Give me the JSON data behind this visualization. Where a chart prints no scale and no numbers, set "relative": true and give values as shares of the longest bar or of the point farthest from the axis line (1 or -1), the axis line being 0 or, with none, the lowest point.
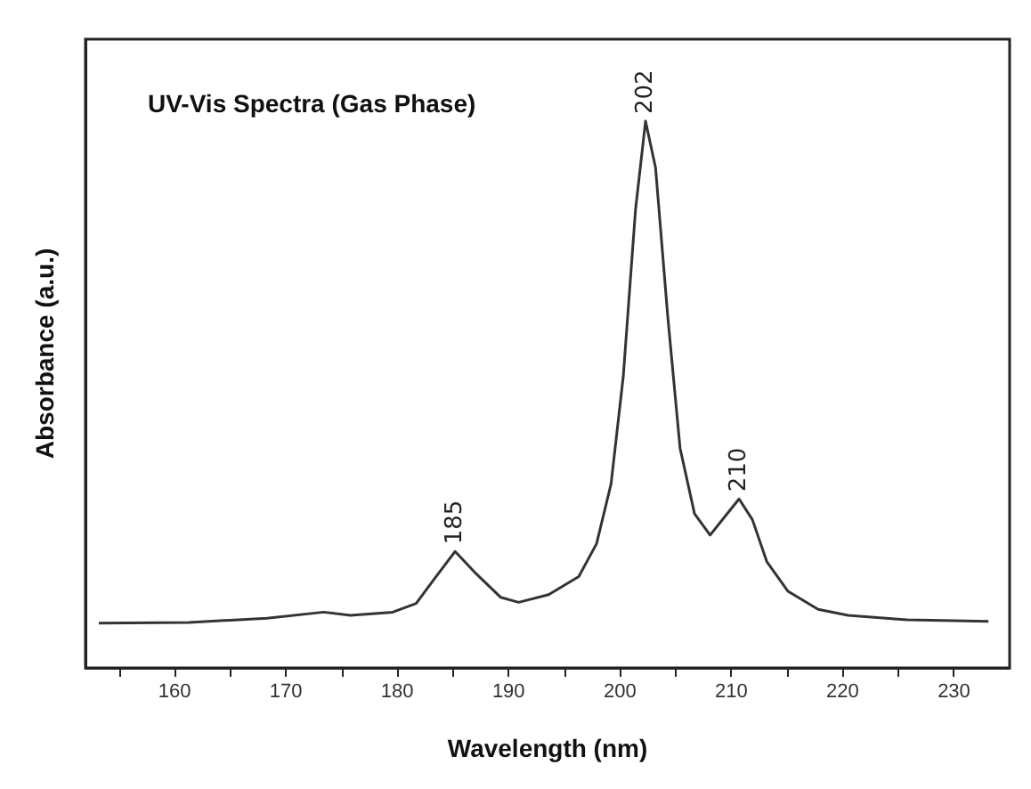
{
  "chart_data": {
    "type": "line",
    "title": "UV-Vis Spectra (Gas Phase)",
    "xlabel": "Wavelength (nm)",
    "ylabel": "Absorbance (a.u.)",
    "relative": true,
    "x": [
      153.2,
      161.3,
      168.3,
      173.4,
      175.8,
      179.6,
      181.7,
      183.3,
      185.2,
      187.1,
      189.3,
      190.9,
      193.6,
      196.3,
      197.9,
      199.2,
      200.3,
      201.4,
      202.3,
      203.2,
      204.3,
      205.4,
      206.7,
      208.1,
      209.4,
      210.7,
      211.9,
      213.2,
      215.1,
      217.8,
      220.5,
      225.8,
      233.1
    ],
    "series": [
      {
        "color": "#333333",
        "values": [
          0.082,
          0.083,
          0.091,
          0.102,
          0.096,
          0.102,
          0.118,
          0.162,
          0.213,
          0.172,
          0.129,
          0.12,
          0.134,
          0.167,
          0.227,
          0.336,
          0.533,
          0.838,
          1.0,
          0.915,
          0.642,
          0.402,
          0.282,
          0.243,
          0.276,
          0.309,
          0.271,
          0.194,
          0.14,
          0.107,
          0.096,
          0.088,
          0.085
        ]
      }
    ],
    "xlim": [
      152,
      235
    ],
    "xticks": [
      {
        "value": 155,
        "label": null
      },
      160,
      {
        "value": 165,
        "label": null
      },
      170,
      {
        "value": 175,
        "label": null
      },
      180,
      {
        "value": 185,
        "label": null
      },
      190,
      {
        "value": 195,
        "label": null
      },
      200,
      {
        "value": 205,
        "label": null
      },
      210,
      {
        "value": 215,
        "label": null
      },
      220,
      {
        "value": 225,
        "label": null
      },
      230
    ],
    "annotations": [
      {
        "text": "185",
        "x": 185.2,
        "y": 0.213
      },
      {
        "text": "202",
        "x": 202.3,
        "y": 1.0
      },
      {
        "text": "210",
        "x": 210.7,
        "y": 0.309
      }
    ],
    "grid": false,
    "marker": "none",
    "line_style": "solid"
  }
}
